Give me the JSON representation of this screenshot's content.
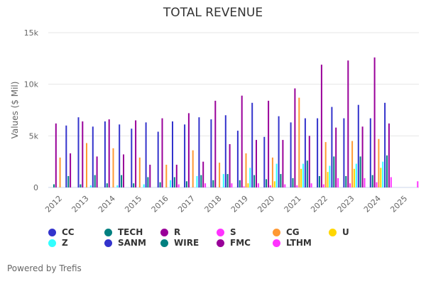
{
  "chart_data": {
    "type": "bar",
    "title": "TOTAL REVENUE",
    "xlabel": "",
    "ylabel": "Values ($ Mil)",
    "ylim": [
      0,
      15000
    ],
    "yticks": [
      0,
      5000,
      10000,
      15000
    ],
    "ytick_labels": [
      "0",
      "5k",
      "10k",
      "15k"
    ],
    "grid": true,
    "legend_position": "bottom-left",
    "categories": [
      "2012",
      "2013",
      "2014",
      "2015",
      "2016",
      "2017",
      "2018",
      "2019",
      "2020",
      "2021",
      "2022",
      "2023",
      "2024",
      "2025"
    ],
    "series": [
      {
        "name": "CC",
        "color": "#3333cc",
        "values": [
          null,
          6800,
          6400,
          5700,
          5400,
          6100,
          6600,
          5500,
          4900,
          6300,
          6700,
          6700,
          6700,
          null
        ]
      },
      {
        "name": "TECH",
        "color": "#008080",
        "values": [
          300,
          300,
          400,
          400,
          500,
          600,
          700,
          700,
          800,
          900,
          1100,
          1100,
          1200,
          null
        ]
      },
      {
        "name": "R",
        "color": "#990099",
        "values": [
          6200,
          6400,
          6600,
          6500,
          6700,
          7200,
          8400,
          8900,
          8400,
          9600,
          11900,
          12300,
          12600,
          null
        ]
      },
      {
        "name": "S",
        "color": "#ff33ff",
        "values": [
          null,
          null,
          null,
          null,
          null,
          null,
          null,
          100,
          200,
          200,
          300,
          400,
          500,
          null
        ]
      },
      {
        "name": "CG",
        "color": "#ff9933",
        "values": [
          2900,
          4300,
          3800,
          2900,
          2200,
          3600,
          2400,
          3300,
          2900,
          8700,
          4400,
          4500,
          4700,
          null
        ]
      },
      {
        "name": "U",
        "color": "#ffd700",
        "values": [
          null,
          null,
          null,
          null,
          null,
          null,
          null,
          400,
          600,
          1800,
          1500,
          1800,
          1900,
          null
        ]
      },
      {
        "name": "Z",
        "color": "#33ffff",
        "values": [
          null,
          200,
          200,
          300,
          700,
          1100,
          1300,
          1900,
          2300,
          2300,
          2100,
          2300,
          2500,
          null
        ]
      },
      {
        "name": "SANM",
        "color": "#3333cc",
        "values": [
          6000,
          5900,
          6100,
          6300,
          6400,
          6800,
          7000,
          8200,
          6900,
          6700,
          7800,
          8000,
          8200,
          null
        ]
      },
      {
        "name": "WIRE",
        "color": "#008080",
        "values": [
          1100,
          1200,
          1200,
          1000,
          1000,
          1200,
          1300,
          1200,
          1300,
          2600,
          3000,
          3000,
          3100,
          null
        ]
      },
      {
        "name": "FMC",
        "color": "#990099",
        "values": [
          3300,
          3000,
          3200,
          2200,
          2200,
          2500,
          4200,
          4600,
          4600,
          5000,
          5800,
          5900,
          6200,
          null
        ]
      },
      {
        "name": "LTHM",
        "color": "#ff33ff",
        "values": [
          null,
          null,
          null,
          null,
          300,
          400,
          400,
          400,
          300,
          400,
          900,
          900,
          1000,
          600
        ]
      }
    ],
    "legend_order_columns": [
      [
        "CC",
        "Z"
      ],
      [
        "TECH",
        "SANM"
      ],
      [
        "R",
        "WIRE"
      ],
      [
        "S",
        "FMC"
      ],
      [
        "CG",
        "LTHM"
      ],
      [
        "U"
      ]
    ]
  },
  "credit": "Powered by Trefis"
}
